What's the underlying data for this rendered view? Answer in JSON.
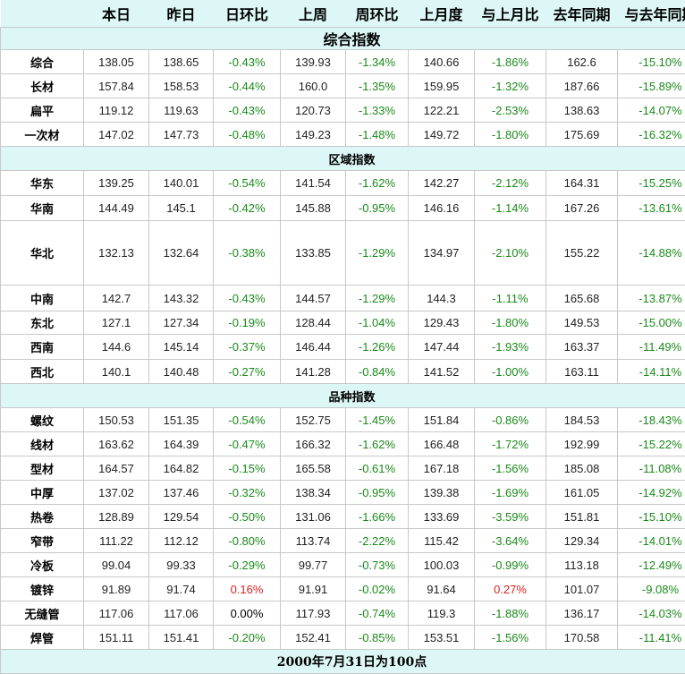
{
  "headers": [
    "",
    "本日",
    "昨日",
    "日环比",
    "上周",
    "周环比",
    "上月度",
    "与上月比",
    "去年同期",
    "与去年同期"
  ],
  "sections": [
    {
      "title": "综合指数",
      "rows": [
        {
          "label": "综合",
          "values": [
            "138.05",
            "138.65",
            "-0.43%",
            "139.93",
            "-1.34%",
            "140.66",
            "-1.86%",
            "162.6",
            "-15.10%"
          ]
        },
        {
          "label": "长材",
          "values": [
            "157.84",
            "158.53",
            "-0.44%",
            "160.0",
            "-1.35%",
            "159.95",
            "-1.32%",
            "187.66",
            "-15.89%"
          ]
        },
        {
          "label": "扁平",
          "values": [
            "119.12",
            "119.63",
            "-0.43%",
            "120.73",
            "-1.33%",
            "122.21",
            "-2.53%",
            "138.63",
            "-14.07%"
          ]
        },
        {
          "label": "一次材",
          "values": [
            "147.02",
            "147.73",
            "-0.48%",
            "149.23",
            "-1.48%",
            "149.72",
            "-1.80%",
            "175.69",
            "-16.32%"
          ]
        }
      ]
    },
    {
      "title": "区域指数",
      "rows": [
        {
          "label": "华东",
          "values": [
            "139.25",
            "140.01",
            "-0.54%",
            "141.54",
            "-1.62%",
            "142.27",
            "-2.12%",
            "164.31",
            "-15.25%"
          ]
        },
        {
          "label": "华南",
          "values": [
            "144.49",
            "145.1",
            "-0.42%",
            "145.88",
            "-0.95%",
            "146.16",
            "-1.14%",
            "167.26",
            "-13.61%"
          ]
        },
        {
          "label": "华北",
          "values": [
            "132.13",
            "132.64",
            "-0.38%",
            "133.85",
            "-1.29%",
            "134.97",
            "-2.10%",
            "155.22",
            "-14.88%"
          ]
        },
        {
          "label": "中南",
          "values": [
            "142.7",
            "143.32",
            "-0.43%",
            "144.57",
            "-1.29%",
            "144.3",
            "-1.11%",
            "165.68",
            "-13.87%"
          ]
        },
        {
          "label": "东北",
          "values": [
            "127.1",
            "127.34",
            "-0.19%",
            "128.44",
            "-1.04%",
            "129.43",
            "-1.80%",
            "149.53",
            "-15.00%"
          ]
        },
        {
          "label": "西南",
          "values": [
            "144.6",
            "145.14",
            "-0.37%",
            "146.44",
            "-1.26%",
            "147.44",
            "-1.93%",
            "163.37",
            "-11.49%"
          ]
        },
        {
          "label": "西北",
          "values": [
            "140.1",
            "140.48",
            "-0.27%",
            "141.28",
            "-0.84%",
            "141.52",
            "-1.00%",
            "163.11",
            "-14.11%"
          ]
        }
      ]
    },
    {
      "title": "品种指数",
      "rows": [
        {
          "label": "螺纹",
          "values": [
            "150.53",
            "151.35",
            "-0.54%",
            "152.75",
            "-1.45%",
            "151.84",
            "-0.86%",
            "184.53",
            "-18.43%"
          ]
        },
        {
          "label": "线材",
          "values": [
            "163.62",
            "164.39",
            "-0.47%",
            "166.32",
            "-1.62%",
            "166.48",
            "-1.72%",
            "192.99",
            "-15.22%"
          ]
        },
        {
          "label": "型材",
          "values": [
            "164.57",
            "164.82",
            "-0.15%",
            "165.58",
            "-0.61%",
            "167.18",
            "-1.56%",
            "185.08",
            "-11.08%"
          ]
        },
        {
          "label": "中厚",
          "values": [
            "137.02",
            "137.46",
            "-0.32%",
            "138.34",
            "-0.95%",
            "139.38",
            "-1.69%",
            "161.05",
            "-14.92%"
          ]
        },
        {
          "label": "热卷",
          "values": [
            "128.89",
            "129.54",
            "-0.50%",
            "131.06",
            "-1.66%",
            "133.69",
            "-3.59%",
            "151.81",
            "-15.10%"
          ]
        },
        {
          "label": "窄带",
          "values": [
            "111.22",
            "112.12",
            "-0.80%",
            "113.74",
            "-2.22%",
            "115.42",
            "-3.64%",
            "129.34",
            "-14.01%"
          ]
        },
        {
          "label": "冷板",
          "values": [
            "99.04",
            "99.33",
            "-0.29%",
            "99.77",
            "-0.73%",
            "100.03",
            "-0.99%",
            "113.18",
            "-12.49%"
          ]
        },
        {
          "label": "镀锌",
          "values": [
            "91.89",
            "91.74",
            "0.16%",
            "91.91",
            "-0.02%",
            "91.64",
            "0.27%",
            "101.07",
            "-9.08%"
          ]
        },
        {
          "label": "无缝管",
          "values": [
            "117.06",
            "117.06",
            "0.00%",
            "117.93",
            "-0.74%",
            "119.3",
            "-1.88%",
            "136.17",
            "-14.03%"
          ]
        },
        {
          "label": "焊管",
          "values": [
            "151.11",
            "151.41",
            "-0.20%",
            "152.41",
            "-0.85%",
            "153.51",
            "-1.56%",
            "170.58",
            "-11.41%"
          ]
        }
      ]
    }
  ],
  "footer": "2000年7月31日为100点",
  "colors": {
    "negative": "#1a8a1a",
    "positive": "#e02020",
    "header_bg": "#ddf7f7"
  }
}
